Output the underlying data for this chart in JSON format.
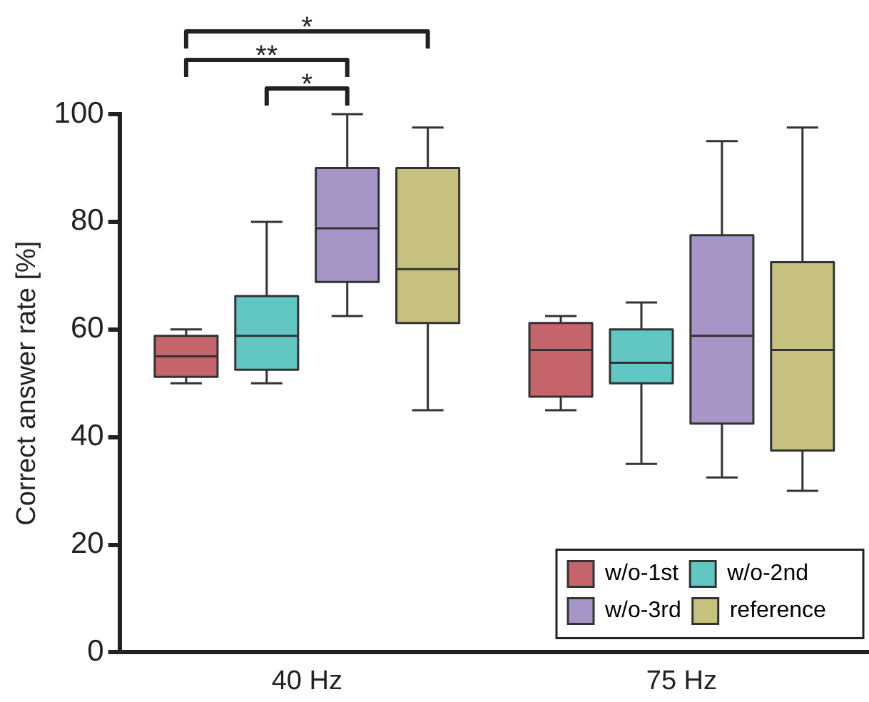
{
  "chart_data": {
    "type": "box",
    "ylabel": "Correct answer rate [%]",
    "categories": [
      "40 Hz",
      "75 Hz"
    ],
    "ylim": [
      0,
      100
    ],
    "yticks": [
      0,
      20,
      40,
      60,
      80,
      100
    ],
    "legend": "bottom right",
    "annotations": [
      "*",
      "**",
      "*"
    ],
    "series": [
      {
        "name": "w/o-1st",
        "color": "#c5646a",
        "boxes": [
          {
            "low": 50,
            "q1": 51.2,
            "median": 55,
            "q3": 58.8,
            "high": 60
          },
          {
            "low": 45,
            "q1": 47.5,
            "median": 56.2,
            "q3": 61.2,
            "high": 62.5
          }
        ]
      },
      {
        "name": "w/o-2nd",
        "color": "#62c6c3",
        "boxes": [
          {
            "low": 50,
            "q1": 52.5,
            "median": 58.8,
            "q3": 66.2,
            "high": 80
          },
          {
            "low": 35,
            "q1": 50,
            "median": 53.8,
            "q3": 60,
            "high": 65
          }
        ]
      },
      {
        "name": "w/o-3rd",
        "color": "#a795c8",
        "boxes": [
          {
            "low": 62.5,
            "q1": 68.8,
            "median": 78.8,
            "q3": 90,
            "high": 100
          },
          {
            "low": 32.5,
            "q1": 42.5,
            "median": 58.8,
            "q3": 77.5,
            "high": 95
          }
        ]
      },
      {
        "name": "reference",
        "color": "#c6c17f",
        "boxes": [
          {
            "low": 45,
            "q1": 61.2,
            "median": 71.2,
            "q3": 90,
            "high": 97.5
          },
          {
            "low": 30,
            "q1": 37.5,
            "median": 56.2,
            "q3": 72.5,
            "high": 97.5
          }
        ]
      }
    ]
  }
}
